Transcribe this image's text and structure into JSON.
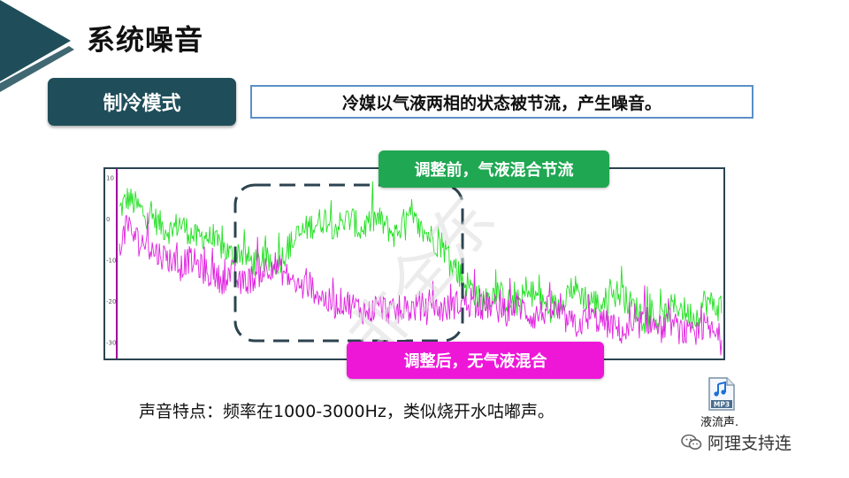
{
  "slide": {
    "title": "系统噪音",
    "mode_label": "制冷模式",
    "description": "冷媒以气液两相的状态被节流，产生噪音。",
    "callout_before": "调整前，气液混合节流",
    "callout_after": "调整后，无气液混合",
    "sound_feature": "声音特点：频率在1000-3000Hz，类似烧开水咕嘟声。",
    "audio_file_label": "液流声.",
    "mp3_icon_text": "MP3",
    "watermark_text": "非全东",
    "wechat_account": "阿理支持连",
    "colors": {
      "header_dark": "#1f4e5a",
      "box_border": "#5b8fc7",
      "green": "#1fa752",
      "pink": "#ee17d8"
    }
  },
  "chart_data": {
    "type": "line",
    "y_ticks": [
      "10",
      "0",
      "-10",
      "-20",
      "-30"
    ],
    "ylim": [
      -34,
      12
    ],
    "series": [
      {
        "color": "#22e022",
        "values": [
          2,
          5,
          3,
          1,
          0,
          -2,
          -3,
          -1,
          -3,
          -5,
          -4,
          -6,
          -7,
          -9,
          -8,
          -10,
          -11,
          -10,
          -12,
          -9,
          -6,
          -4,
          -2,
          -1,
          0,
          -2,
          -1,
          0,
          -3,
          -1,
          0,
          -2,
          -4,
          -1,
          0,
          -3,
          -4,
          -6,
          -8,
          -12,
          -15,
          -17,
          -20,
          -19,
          -18,
          -20,
          -21,
          -19,
          -18,
          -20,
          -22,
          -21,
          -18,
          -17,
          -19,
          -20,
          -21,
          -19,
          -18,
          -20,
          -22,
          -23,
          -24,
          -25,
          -22,
          -21,
          -23,
          -24,
          -20,
          -21,
          -22
        ]
      },
      {
        "color": "#e020e0",
        "values": [
          -6,
          -2,
          -5,
          -6,
          -8,
          -9,
          -10,
          -12,
          -10,
          -11,
          -13,
          -14,
          -15,
          -13,
          -16,
          -15,
          -14,
          -12,
          -11,
          -13,
          -15,
          -17,
          -16,
          -18,
          -20,
          -21,
          -20,
          -21,
          -22,
          -23,
          -21,
          -22,
          -23,
          -22,
          -22,
          -21,
          -23,
          -22,
          -22,
          -21,
          -20,
          -21,
          -22,
          -21,
          -22,
          -23,
          -21,
          -22,
          -24,
          -23,
          -22,
          -23,
          -25,
          -26,
          -25,
          -24,
          -25,
          -26,
          -27,
          -28,
          -27,
          -24,
          -26,
          -27,
          -25,
          -27,
          -28,
          -29,
          -26,
          -28,
          -29
        ]
      }
    ]
  }
}
